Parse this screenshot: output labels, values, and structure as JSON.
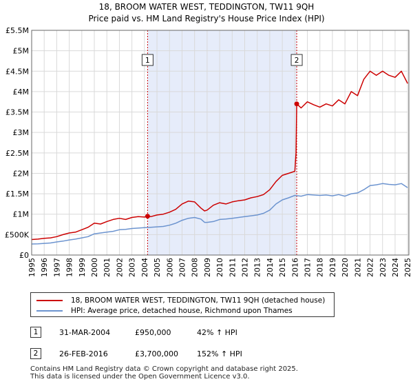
{
  "title_line1": "18, BROOM WATER WEST, TEDDINGTON, TW11 9QH",
  "title_line2": "Price paid vs. HM Land Registry's House Price Index (HPI)",
  "colors": {
    "property": "#cc0000",
    "hpi": "#6b93cf",
    "shade": "#e6ecfa",
    "grid": "#d9d9d9",
    "marker_line": "#cc0000"
  },
  "chart_data": {
    "type": "line",
    "ylim": [
      0,
      5500000
    ],
    "xlim": [
      1995,
      2025.1
    ],
    "yticks": [
      {
        "v": 0,
        "label": "£0"
      },
      {
        "v": 500000,
        "label": "£500K"
      },
      {
        "v": 1000000,
        "label": "£1M"
      },
      {
        "v": 1500000,
        "label": "£1.5M"
      },
      {
        "v": 2000000,
        "label": "£2M"
      },
      {
        "v": 2500000,
        "label": "£2.5M"
      },
      {
        "v": 3000000,
        "label": "£3M"
      },
      {
        "v": 3500000,
        "label": "£3.5M"
      },
      {
        "v": 4000000,
        "label": "£4M"
      },
      {
        "v": 4500000,
        "label": "£4.5M"
      },
      {
        "v": 5000000,
        "label": "£5M"
      },
      {
        "v": 5500000,
        "label": "£5.5M"
      }
    ],
    "xticks": [
      "1995",
      "1996",
      "1997",
      "1998",
      "1999",
      "2000",
      "2001",
      "2002",
      "2003",
      "2004",
      "2005",
      "2006",
      "2007",
      "2008",
      "2009",
      "2010",
      "2011",
      "2012",
      "2013",
      "2014",
      "2015",
      "2016",
      "2017",
      "2018",
      "2019",
      "2020",
      "2021",
      "2022",
      "2023",
      "2024",
      "2025"
    ],
    "shaded_range": [
      2004.25,
      2016.15
    ],
    "sales": [
      {
        "label": "1",
        "x": 2004.25,
        "price": 950000
      },
      {
        "label": "2",
        "x": 2016.15,
        "price": 3700000
      }
    ],
    "series": [
      {
        "name": "18, BROOM WATER WEST, TEDDINGTON, TW11 9QH (detached house)",
        "x": [
          1995.0,
          1995.5,
          1996.0,
          1996.5,
          1997.0,
          1997.5,
          1998.0,
          1998.5,
          1999.0,
          1999.5,
          2000.0,
          2000.5,
          2001.0,
          2001.5,
          2002.0,
          2002.5,
          2003.0,
          2003.5,
          2004.0,
          2004.25,
          2004.5,
          2005.0,
          2005.5,
          2006.0,
          2006.5,
          2007.0,
          2007.5,
          2008.0,
          2008.5,
          2008.8,
          2009.0,
          2009.5,
          2010.0,
          2010.5,
          2011.0,
          2011.5,
          2012.0,
          2012.5,
          2013.0,
          2013.5,
          2014.0,
          2014.5,
          2015.0,
          2015.5,
          2016.0,
          2016.1,
          2016.15,
          2016.5,
          2017.0,
          2017.5,
          2018.0,
          2018.5,
          2019.0,
          2019.5,
          2020.0,
          2020.5,
          2021.0,
          2021.5,
          2022.0,
          2022.5,
          2023.0,
          2023.5,
          2024.0,
          2024.5,
          2025.0
        ],
        "values": [
          380000,
          390000,
          410000,
          420000,
          450000,
          500000,
          540000,
          560000,
          620000,
          680000,
          780000,
          760000,
          820000,
          870000,
          900000,
          870000,
          920000,
          940000,
          930000,
          950000,
          940000,
          980000,
          1000000,
          1050000,
          1120000,
          1250000,
          1320000,
          1300000,
          1150000,
          1080000,
          1100000,
          1220000,
          1280000,
          1250000,
          1300000,
          1330000,
          1350000,
          1400000,
          1430000,
          1480000,
          1600000,
          1800000,
          1950000,
          2000000,
          2050000,
          2500000,
          3700000,
          3600000,
          3750000,
          3680000,
          3620000,
          3700000,
          3650000,
          3800000,
          3700000,
          4000000,
          3900000,
          4300000,
          4500000,
          4400000,
          4500000,
          4400000,
          4350000,
          4500000,
          4200000
        ]
      },
      {
        "name": "HPI: Average price, detached house, Richmond upon Thames",
        "x": [
          1995.0,
          1995.5,
          1996.0,
          1996.5,
          1997.0,
          1997.5,
          1998.0,
          1998.5,
          1999.0,
          1999.5,
          2000.0,
          2000.5,
          2001.0,
          2001.5,
          2002.0,
          2002.5,
          2003.0,
          2003.5,
          2004.0,
          2004.5,
          2005.0,
          2005.5,
          2006.0,
          2006.5,
          2007.0,
          2007.5,
          2008.0,
          2008.5,
          2008.8,
          2009.0,
          2009.5,
          2010.0,
          2010.5,
          2011.0,
          2011.5,
          2012.0,
          2012.5,
          2013.0,
          2013.5,
          2014.0,
          2014.5,
          2015.0,
          2015.5,
          2016.0,
          2016.5,
          2017.0,
          2017.5,
          2018.0,
          2018.5,
          2019.0,
          2019.5,
          2020.0,
          2020.5,
          2021.0,
          2021.5,
          2022.0,
          2022.5,
          2023.0,
          2023.5,
          2024.0,
          2024.5,
          2025.0
        ],
        "values": [
          270000,
          275000,
          285000,
          295000,
          320000,
          340000,
          370000,
          390000,
          420000,
          450000,
          520000,
          540000,
          560000,
          580000,
          620000,
          630000,
          650000,
          660000,
          670000,
          680000,
          690000,
          700000,
          730000,
          780000,
          850000,
          900000,
          920000,
          880000,
          800000,
          800000,
          820000,
          870000,
          880000,
          900000,
          920000,
          940000,
          960000,
          980000,
          1020000,
          1100000,
          1250000,
          1350000,
          1400000,
          1460000,
          1440000,
          1480000,
          1470000,
          1460000,
          1470000,
          1450000,
          1480000,
          1440000,
          1500000,
          1520000,
          1600000,
          1700000,
          1720000,
          1750000,
          1730000,
          1720000,
          1750000,
          1650000
        ]
      }
    ]
  },
  "legend": {
    "property_label": "18, BROOM WATER WEST, TEDDINGTON, TW11 9QH (detached house)",
    "hpi_label": "HPI: Average price, detached house, Richmond upon Thames"
  },
  "transactions": [
    {
      "num": "1",
      "date": "31-MAR-2004",
      "price": "£950,000",
      "hpi": "42% ↑ HPI"
    },
    {
      "num": "2",
      "date": "26-FEB-2016",
      "price": "£3,700,000",
      "hpi": "152% ↑ HPI"
    }
  ],
  "footer": {
    "line1": "Contains HM Land Registry data © Crown copyright and database right 2025.",
    "line2": "This data is licensed under the Open Government Licence v3.0."
  }
}
